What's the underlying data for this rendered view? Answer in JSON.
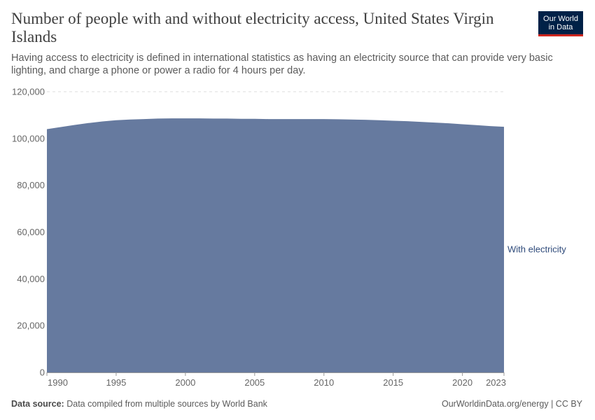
{
  "header": {
    "title": "Number of people with and without electricity access, United States Virgin Islands",
    "subtitle": "Having access to electricity is defined in international statistics as having an electricity source that can provide very basic lighting, and charge a phone or power a radio for 4 hours per day.",
    "logo_line1": "Our World",
    "logo_line2": "in Data"
  },
  "footer": {
    "source_label": "Data source:",
    "source_text": "Data compiled from multiple sources by World Bank",
    "credit": "OurWorldinData.org/energy | CC BY"
  },
  "colors": {
    "with_electricity": "#667a9f",
    "series_label": "#2e4a7a",
    "logo_bg": "#002147",
    "logo_accent": "#ce261e"
  },
  "chart_data": {
    "type": "area",
    "title": "Number of people with and without electricity access, United States Virgin Islands",
    "x": [
      1990,
      1991,
      1992,
      1993,
      1994,
      1995,
      1996,
      1997,
      1998,
      1999,
      2000,
      2001,
      2002,
      2003,
      2004,
      2005,
      2006,
      2007,
      2008,
      2009,
      2010,
      2011,
      2012,
      2013,
      2014,
      2015,
      2016,
      2017,
      2018,
      2019,
      2020,
      2021,
      2022,
      2023
    ],
    "series": [
      {
        "name": "With electricity",
        "values": [
          104000,
          104900,
          105800,
          106600,
          107300,
          107800,
          108100,
          108300,
          108500,
          108600,
          108600,
          108600,
          108500,
          108500,
          108400,
          108400,
          108300,
          108300,
          108300,
          108300,
          108300,
          108200,
          108100,
          108000,
          107800,
          107600,
          107400,
          107100,
          106800,
          106500,
          106100,
          105700,
          105300,
          105000
        ]
      }
    ],
    "xticks": [
      "1990",
      "1995",
      "2000",
      "2005",
      "2010",
      "2015",
      "2020",
      "2023"
    ],
    "yticks": [
      "0",
      "20,000",
      "40,000",
      "60,000",
      "80,000",
      "100,000",
      "120,000"
    ],
    "ylim": [
      0,
      120000
    ],
    "xlim": [
      1990,
      2023
    ],
    "grid": "horizontal-dashed",
    "legend": "right-inline"
  }
}
